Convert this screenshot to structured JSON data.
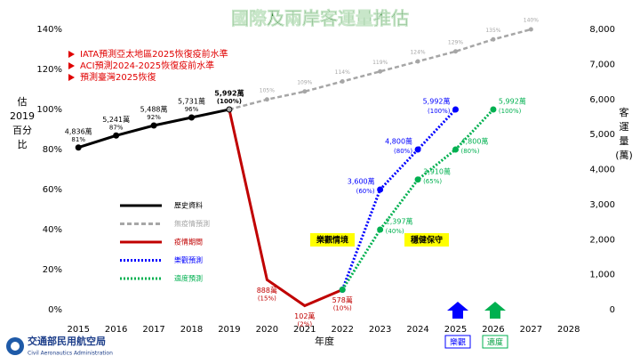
{
  "chart_data": {
    "type": "line",
    "title": "國際及兩岸客運量推估",
    "y_label_lines": [
      "估",
      "2019",
      "百分",
      "比"
    ],
    "y2_label_lines": [
      "客",
      "運",
      "量",
      "(萬)"
    ],
    "x_label": "年度",
    "categories": [
      "2015",
      "2016",
      "2017",
      "2018",
      "2019",
      "2020",
      "2021",
      "2022",
      "2023",
      "2024",
      "2025",
      "2026",
      "2027",
      "2028"
    ],
    "ylim": [
      0,
      140
    ],
    "yticks": [
      {
        "value": 0,
        "label": "0%"
      },
      {
        "value": 20,
        "label": "20%"
      },
      {
        "value": 40,
        "label": "40%"
      },
      {
        "value": 60,
        "label": "60%"
      },
      {
        "value": 80,
        "label": "80%"
      },
      {
        "value": 100,
        "label": "100%"
      },
      {
        "value": 120,
        "label": "120%"
      },
      {
        "value": 140,
        "label": "140%"
      }
    ],
    "y2lim": [
      0,
      8000
    ],
    "y2ticks": [
      0,
      {
        "value": 1000,
        "label": "1,000"
      },
      {
        "value": 2000,
        "label": "2,000"
      },
      {
        "value": 3000,
        "label": "3,000"
      },
      {
        "value": 4000,
        "label": "4,000"
      },
      {
        "value": 5000,
        "label": "5,000"
      },
      {
        "value": 6000,
        "label": "6,000"
      },
      {
        "value": 7000,
        "label": "7,000"
      },
      {
        "value": 8000,
        "label": "8,000"
      }
    ],
    "grid": false,
    "series": [
      {
        "name": "歷史資料",
        "color": "#000000",
        "line_style": "solid",
        "values": [
          81,
          87,
          92,
          96,
          100,
          null,
          null,
          null,
          null,
          null,
          null,
          null,
          null,
          null
        ],
        "value_labels": [
          [
            "4,836萬",
            "81%"
          ],
          [
            "5,241萬",
            "87%"
          ],
          [
            "5,488萬",
            "92%"
          ],
          [
            "5,731萬",
            "96%"
          ],
          [
            "5,992萬",
            "(100%)"
          ],
          null,
          null,
          null,
          null,
          null,
          null,
          null,
          null,
          null
        ]
      },
      {
        "name": "無疫情預測",
        "color": "#a6a6a6",
        "line_style": "dashed",
        "values": [
          null,
          null,
          null,
          null,
          100,
          105,
          109,
          114,
          119,
          124,
          129,
          135,
          140,
          null
        ],
        "value_labels": [
          null,
          null,
          null,
          null,
          null,
          "105%",
          "109%",
          "114%",
          "119%",
          "124%",
          "129%",
          "135%",
          "140%",
          null
        ]
      },
      {
        "name": "疫情期間",
        "color": "#c00000",
        "line_style": "solid",
        "values": [
          null,
          null,
          null,
          null,
          100,
          15,
          2,
          10,
          null,
          null,
          null,
          null,
          null,
          null
        ],
        "value_labels": [
          null,
          null,
          null,
          null,
          null,
          [
            "888萬",
            "(15%)"
          ],
          [
            "102萬",
            "(2%)"
          ],
          [
            "578萬",
            "(10%)"
          ],
          null,
          null,
          null,
          null,
          null,
          null
        ]
      },
      {
        "name": "樂觀預測",
        "color": "#0000ff",
        "line_style": "dotted",
        "values": [
          null,
          null,
          null,
          null,
          null,
          null,
          null,
          10,
          60,
          80,
          100,
          null,
          null,
          null
        ],
        "value_labels": [
          null,
          null,
          null,
          null,
          null,
          null,
          null,
          null,
          [
            "3,600萬",
            "(60%)"
          ],
          [
            "4,800萬",
            "(80%)"
          ],
          [
            "5,992萬",
            "(100%)"
          ],
          null,
          null,
          null
        ]
      },
      {
        "name": "適度預測",
        "color": "#00b050",
        "line_style": "dotted",
        "values": [
          null,
          null,
          null,
          null,
          null,
          null,
          null,
          10,
          40,
          65,
          80,
          100,
          null,
          null
        ],
        "value_labels": [
          null,
          null,
          null,
          null,
          null,
          null,
          null,
          null,
          [
            "2,397萬",
            "(40%)"
          ],
          [
            "3,910萬",
            "(65%)"
          ],
          [
            "4,800萬",
            "(80%)"
          ],
          [
            "5,992萬",
            "(100%)"
          ],
          null,
          null
        ]
      }
    ],
    "notes": [
      "IATA預測亞太地區2025恢復疫前水準",
      "ACI預測2024-2025恢復疫前水準",
      "預測臺灣2025恢復"
    ],
    "scenario_boxes": [
      "樂觀情境",
      "穩健保守"
    ],
    "arrow_labels": [
      "樂觀",
      "適度"
    ]
  },
  "logo": {
    "name": "交通部民用航空局",
    "english": "Civil Aeronautics Administration"
  }
}
